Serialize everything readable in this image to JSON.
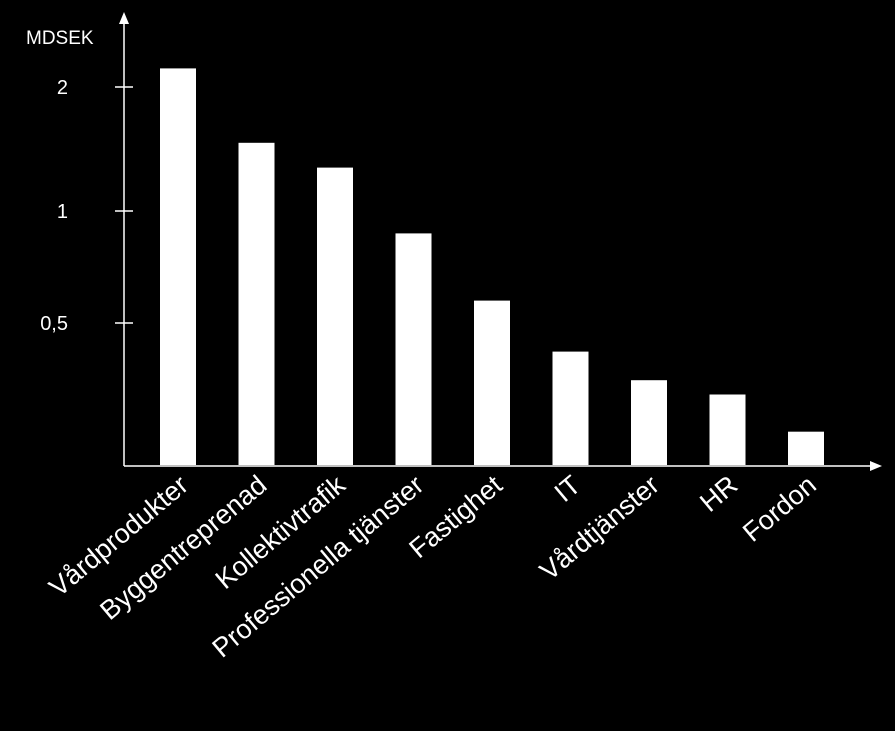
{
  "chart_data": {
    "type": "bar",
    "ylabel": "MDSEK",
    "categories": [
      "Vårdprodukter",
      "Byggentreprenad",
      "Kollektivtrafik",
      "Professionella tjänster",
      "Fastighet",
      "IT",
      "Vårdtjänster",
      "HR",
      "Fordon"
    ],
    "values": [
      2.15,
      1.55,
      1.35,
      0.9,
      0.6,
      0.4,
      0.3,
      0.25,
      0.12
    ],
    "yticks": [
      {
        "value": 0.5,
        "label": "0,5"
      },
      {
        "value": 1,
        "label": "1"
      },
      {
        "value": 2,
        "label": "2"
      }
    ],
    "ylim": [
      0,
      2.4
    ],
    "grid": false,
    "legend": "none",
    "colors": {
      "background": "#000000",
      "bar": "#ffffff",
      "axis": "#ffffff",
      "text": "#ffffff"
    }
  }
}
